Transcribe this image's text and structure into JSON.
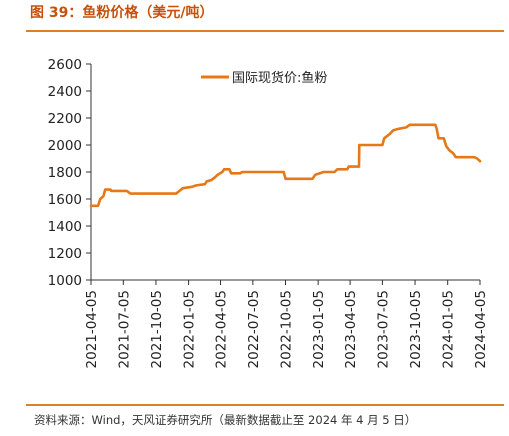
{
  "figure": {
    "title": "图 39：鱼粉价格（美元/吨）",
    "source": "资料来源：Wind，天风证券研究所（最新数据截止至 2024 年 4 月 5 日）"
  },
  "colors": {
    "series": "#e67817",
    "accent": "#e07f22",
    "title": "#c8500a",
    "axis": "#333333"
  },
  "chart_data": {
    "type": "line",
    "title": "",
    "xlabel": "",
    "ylabel": "",
    "ylim": [
      1000,
      2600
    ],
    "yticks": [
      1000,
      1200,
      1400,
      1600,
      1800,
      2000,
      2200,
      2400,
      2600
    ],
    "xlim": [
      "2021-04-05",
      "2024-04-05"
    ],
    "xticks": [
      "2021-04-05",
      "2021-07-05",
      "2021-10-05",
      "2022-01-05",
      "2022-04-05",
      "2022-07-05",
      "2022-10-05",
      "2023-01-05",
      "2023-04-05",
      "2023-07-05",
      "2023-10-05",
      "2024-01-05",
      "2024-04-05"
    ],
    "legend_position": "top-center",
    "grid": false,
    "series": [
      {
        "name": "国际现货价:鱼粉",
        "color": "#e67817",
        "points": [
          [
            "2021-04-05",
            1550
          ],
          [
            "2021-04-25",
            1550
          ],
          [
            "2021-05-01",
            1600
          ],
          [
            "2021-05-10",
            1620
          ],
          [
            "2021-05-15",
            1670
          ],
          [
            "2021-05-30",
            1670
          ],
          [
            "2021-06-01",
            1660
          ],
          [
            "2021-07-15",
            1660
          ],
          [
            "2021-07-25",
            1640
          ],
          [
            "2021-12-01",
            1640
          ],
          [
            "2021-12-10",
            1660
          ],
          [
            "2021-12-20",
            1680
          ],
          [
            "2022-01-15",
            1690
          ],
          [
            "2022-01-25",
            1700
          ],
          [
            "2022-02-20",
            1710
          ],
          [
            "2022-02-25",
            1730
          ],
          [
            "2022-03-10",
            1740
          ],
          [
            "2022-03-20",
            1760
          ],
          [
            "2022-03-28",
            1780
          ],
          [
            "2022-04-10",
            1800
          ],
          [
            "2022-04-15",
            1820
          ],
          [
            "2022-04-30",
            1820
          ],
          [
            "2022-05-05",
            1790
          ],
          [
            "2022-05-30",
            1790
          ],
          [
            "2022-06-05",
            1800
          ],
          [
            "2022-09-30",
            1800
          ],
          [
            "2022-10-05",
            1750
          ],
          [
            "2022-12-20",
            1750
          ],
          [
            "2022-12-28",
            1780
          ],
          [
            "2023-01-10",
            1790
          ],
          [
            "2023-01-20",
            1800
          ],
          [
            "2023-02-20",
            1800
          ],
          [
            "2023-02-28",
            1820
          ],
          [
            "2023-03-28",
            1820
          ],
          [
            "2023-04-01",
            1840
          ],
          [
            "2023-04-30",
            1840
          ],
          [
            "2023-05-01",
            2000
          ],
          [
            "2023-07-05",
            2000
          ],
          [
            "2023-07-10",
            2050
          ],
          [
            "2023-07-25",
            2080
          ],
          [
            "2023-08-05",
            2110
          ],
          [
            "2023-08-20",
            2120
          ],
          [
            "2023-09-10",
            2130
          ],
          [
            "2023-09-20",
            2150
          ],
          [
            "2023-12-01",
            2150
          ],
          [
            "2023-12-05",
            2120
          ],
          [
            "2023-12-10",
            2050
          ],
          [
            "2023-12-25",
            2050
          ],
          [
            "2024-01-01",
            1990
          ],
          [
            "2024-01-10",
            1960
          ],
          [
            "2024-01-20",
            1940
          ],
          [
            "2024-01-28",
            1910
          ],
          [
            "2024-03-20",
            1910
          ],
          [
            "2024-03-28",
            1900
          ],
          [
            "2024-04-05",
            1880
          ]
        ]
      }
    ]
  }
}
